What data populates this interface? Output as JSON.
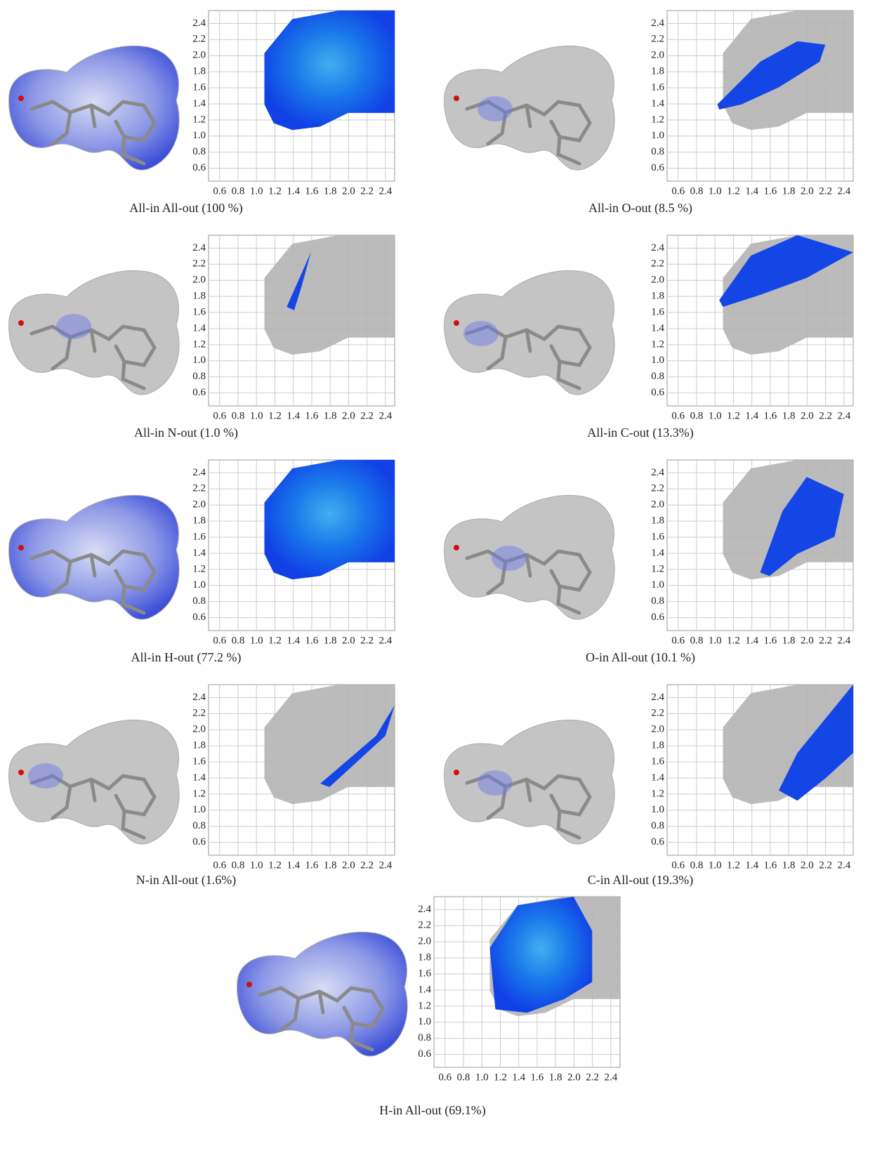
{
  "chart_data": [
    {
      "type": "fingerprint",
      "title": "All-in All-out (100 %)",
      "xlim": [
        0.48,
        2.5
      ],
      "ylim": [
        0.44,
        2.56
      ],
      "grid": true,
      "xticks": [
        0.6,
        0.8,
        {
          "value": 1,
          "label": "1.0"
        },
        1.2,
        1.4,
        1.6,
        1.8,
        {
          "value": 2,
          "label": "2.0"
        },
        2.2,
        2.4
      ],
      "yticks": [
        0.6,
        0.8,
        {
          "value": 1,
          "label": "1.0"
        },
        1.2,
        1.4,
        1.6,
        1.8,
        {
          "value": 2,
          "label": "2.0"
        },
        2.2,
        2.4
      ]
    },
    {
      "type": "fingerprint",
      "title": "All-in O-out (8.5 %)",
      "xlim": [
        0.48,
        2.5
      ],
      "ylim": [
        0.44,
        2.56
      ],
      "grid": true,
      "xticks": [
        0.6,
        0.8,
        {
          "value": 1,
          "label": "1.0"
        },
        1.2,
        1.4,
        1.6,
        1.8,
        {
          "value": 2,
          "label": "2.0"
        },
        2.2,
        2.4
      ],
      "yticks": [
        0.6,
        0.8,
        {
          "value": 1,
          "label": "1.0"
        },
        1.2,
        1.4,
        1.6,
        1.8,
        {
          "value": 2,
          "label": "2.0"
        },
        2.2,
        2.4
      ]
    },
    {
      "type": "fingerprint",
      "title": "All-in N-out (1.0 %)",
      "xlim": [
        0.48,
        2.5
      ],
      "ylim": [
        0.44,
        2.56
      ],
      "grid": true,
      "xticks": [
        0.6,
        0.8,
        {
          "value": 1,
          "label": "1.0"
        },
        1.2,
        1.4,
        1.6,
        1.8,
        {
          "value": 2,
          "label": "2.0"
        },
        2.2,
        2.4
      ],
      "yticks": [
        0.6,
        0.8,
        {
          "value": 1,
          "label": "1.0"
        },
        1.2,
        1.4,
        1.6,
        1.8,
        {
          "value": 2,
          "label": "2.0"
        },
        2.2,
        2.4
      ]
    },
    {
      "type": "fingerprint",
      "title": "All-in C-out (13.3%)",
      "xlim": [
        0.48,
        2.5
      ],
      "ylim": [
        0.44,
        2.56
      ],
      "grid": true,
      "xticks": [
        0.6,
        0.8,
        {
          "value": 1,
          "label": "1.0"
        },
        1.2,
        1.4,
        1.6,
        1.8,
        {
          "value": 2,
          "label": "2.0"
        },
        2.2,
        2.4
      ],
      "yticks": [
        0.6,
        0.8,
        {
          "value": 1,
          "label": "1.0"
        },
        1.2,
        1.4,
        1.6,
        1.8,
        {
          "value": 2,
          "label": "2.0"
        },
        2.2,
        2.4
      ]
    },
    {
      "type": "fingerprint",
      "title": "All-in H-out (77.2 %)",
      "xlim": [
        0.48,
        2.5
      ],
      "ylim": [
        0.44,
        2.56
      ],
      "grid": true,
      "xticks": [
        0.6,
        0.8,
        {
          "value": 1,
          "label": "1.0"
        },
        1.2,
        1.4,
        1.6,
        1.8,
        {
          "value": 2,
          "label": "2.0"
        },
        2.2,
        2.4
      ],
      "yticks": [
        0.6,
        0.8,
        {
          "value": 1,
          "label": "1.0"
        },
        1.2,
        1.4,
        1.6,
        1.8,
        {
          "value": 2,
          "label": "2.0"
        },
        2.2,
        2.4
      ]
    },
    {
      "type": "fingerprint",
      "title": "O-in All-out (10.1 %)",
      "xlim": [
        0.48,
        2.5
      ],
      "ylim": [
        0.44,
        2.56
      ],
      "grid": true,
      "xticks": [
        0.6,
        0.8,
        {
          "value": 1,
          "label": "1.0"
        },
        1.2,
        1.4,
        1.6,
        1.8,
        {
          "value": 2,
          "label": "2.0"
        },
        2.2,
        2.4
      ],
      "yticks": [
        0.6,
        0.8,
        {
          "value": 1,
          "label": "1.0"
        },
        1.2,
        1.4,
        1.6,
        1.8,
        {
          "value": 2,
          "label": "2.0"
        },
        2.2,
        2.4
      ]
    },
    {
      "type": "fingerprint",
      "title": "N-in All-out (1.6%)",
      "xlim": [
        0.48,
        2.5
      ],
      "ylim": [
        0.44,
        2.56
      ],
      "grid": true,
      "xticks": [
        0.6,
        0.8,
        {
          "value": 1,
          "label": "1.0"
        },
        1.2,
        1.4,
        1.6,
        1.8,
        {
          "value": 2,
          "label": "2.0"
        },
        2.2,
        2.4
      ],
      "yticks": [
        0.6,
        0.8,
        {
          "value": 1,
          "label": "1.0"
        },
        1.2,
        1.4,
        1.6,
        1.8,
        {
          "value": 2,
          "label": "2.0"
        },
        2.2,
        2.4
      ]
    },
    {
      "type": "fingerprint",
      "title": "C-in All-out (19.3%)",
      "xlim": [
        0.48,
        2.5
      ],
      "ylim": [
        0.44,
        2.56
      ],
      "grid": true,
      "xticks": [
        0.6,
        0.8,
        {
          "value": 1,
          "label": "1.0"
        },
        1.2,
        1.4,
        1.6,
        1.8,
        {
          "value": 2,
          "label": "2.0"
        },
        2.2,
        2.4
      ],
      "yticks": [
        0.6,
        0.8,
        {
          "value": 1,
          "label": "1.0"
        },
        1.2,
        1.4,
        1.6,
        1.8,
        {
          "value": 2,
          "label": "2.0"
        },
        2.2,
        2.4
      ]
    },
    {
      "type": "fingerprint",
      "title": "H-in All-out (69.1%)",
      "xlim": [
        0.48,
        2.5
      ],
      "ylim": [
        0.44,
        2.56
      ],
      "grid": true,
      "xticks": [
        0.6,
        0.8,
        {
          "value": 1,
          "label": "1.0"
        },
        1.2,
        1.4,
        1.6,
        1.8,
        {
          "value": 2,
          "label": "2.0"
        },
        2.2,
        2.4
      ],
      "yticks": [
        0.6,
        0.8,
        {
          "value": 1,
          "label": "1.0"
        },
        1.2,
        1.4,
        1.6,
        1.8,
        {
          "value": 2,
          "label": "2.0"
        },
        2.2,
        2.4
      ]
    }
  ]
}
